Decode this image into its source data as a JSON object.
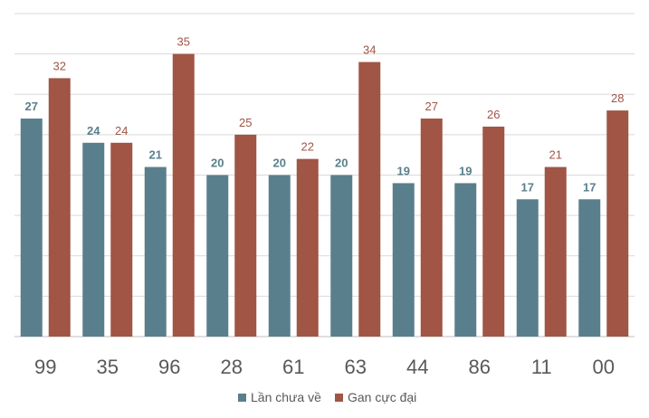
{
  "chart_data": {
    "type": "bar",
    "categories": [
      "99",
      "35",
      "96",
      "28",
      "61",
      "63",
      "44",
      "86",
      "11",
      "00"
    ],
    "series": [
      {
        "name": "Lần chưa về",
        "color": "#5a7f8c",
        "values": [
          27,
          24,
          21,
          20,
          20,
          20,
          19,
          19,
          17,
          17
        ]
      },
      {
        "name": "Gan cực đại",
        "color": "#a05545",
        "values": [
          32,
          24,
          35,
          25,
          22,
          34,
          27,
          26,
          21,
          28
        ]
      }
    ],
    "ylim": [
      0,
      40
    ],
    "grid": true,
    "legend_position": "bottom"
  }
}
